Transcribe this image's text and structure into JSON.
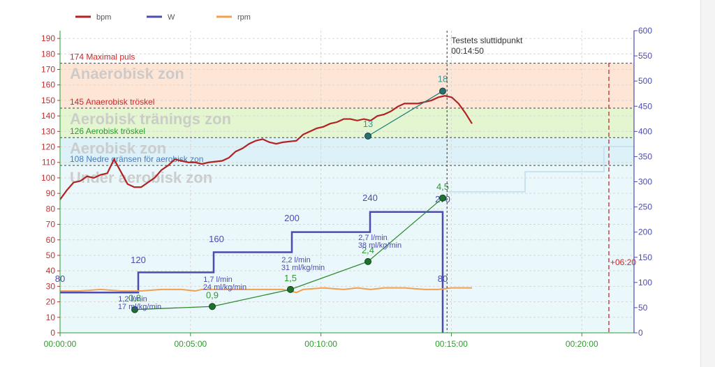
{
  "chart_data": {
    "type": "line",
    "legend": {
      "placement": "top-left",
      "items": [
        {
          "label": "bpm",
          "color": "#b22222"
        },
        {
          "label": "W",
          "color": "#4b4bb0"
        },
        {
          "label": "rpm",
          "color": "#f0a050"
        }
      ]
    },
    "x_axis": {
      "range": [
        "00:00:00",
        "00:22:00"
      ],
      "ticks": [
        "00:00:00",
        "00:05:00",
        "00:10:00",
        "00:15:00",
        "00:20:00"
      ],
      "color": "#2e9a2e",
      "grid": true
    },
    "y_axis_left": {
      "unit": "bpm",
      "range": [
        0,
        195
      ],
      "ticks": [
        0,
        10,
        20,
        30,
        40,
        50,
        60,
        70,
        80,
        90,
        100,
        110,
        120,
        130,
        140,
        150,
        160,
        170,
        180,
        190
      ],
      "color": "#c03030",
      "grid": true
    },
    "y_axis_right": {
      "unit": "W",
      "range": [
        0,
        600
      ],
      "ticks": [
        0,
        50,
        100,
        150,
        200,
        250,
        300,
        350,
        400,
        450,
        500,
        550,
        600
      ],
      "color": "#4b4bb0"
    },
    "zones": [
      {
        "name": "Anaerobisk zon",
        "from": 145,
        "to": 174,
        "color": "#fde6d6"
      },
      {
        "name": "Aerobisk tränings zon",
        "from": 126,
        "to": 145,
        "color": "#e4f6d0"
      },
      {
        "name": "Aerobisk zon",
        "from": 108,
        "to": 126,
        "color": "#dcf2f8"
      },
      {
        "name": "Under aerobisk zon",
        "from": 0,
        "to": 108,
        "color": "#eaf8fb"
      }
    ],
    "thresholds": [
      {
        "value": 174,
        "label": "174 Maximal puls",
        "color": "#c82828"
      },
      {
        "value": 145,
        "label": "145 Anaerobisk tröskel",
        "color": "#c82828"
      },
      {
        "value": 126,
        "label": "126 Aerobisk tröskel",
        "color": "#2e9a2e"
      },
      {
        "value": 108,
        "label": "108 Nedre gränsen för aerobisk zon",
        "color": "#4a7ab8"
      }
    ],
    "end_marker": {
      "time": "00:14:50",
      "label": "Testets sluttidpunkt",
      "time_label": "00:14:50"
    },
    "offset_marker": {
      "time": "00:21:10",
      "label": "+06:20"
    },
    "series": [
      {
        "name": "bpm",
        "axis": "left",
        "color": "#b22222",
        "points": [
          [
            0,
            86
          ],
          [
            10,
            92
          ],
          [
            20,
            97
          ],
          [
            30,
            98
          ],
          [
            40,
            101
          ],
          [
            50,
            100
          ],
          [
            60,
            102
          ],
          [
            70,
            103
          ],
          [
            80,
            112
          ],
          [
            90,
            104
          ],
          [
            100,
            96
          ],
          [
            110,
            94
          ],
          [
            120,
            94
          ],
          [
            130,
            97
          ],
          [
            140,
            100
          ],
          [
            150,
            105
          ],
          [
            160,
            108
          ],
          [
            170,
            112
          ],
          [
            180,
            111
          ],
          [
            190,
            110
          ],
          [
            200,
            110
          ],
          [
            210,
            109
          ],
          [
            220,
            110
          ],
          [
            240,
            111
          ],
          [
            250,
            113
          ],
          [
            260,
            117
          ],
          [
            270,
            119
          ],
          [
            280,
            122
          ],
          [
            290,
            124
          ],
          [
            300,
            125
          ],
          [
            310,
            123
          ],
          [
            320,
            122
          ],
          [
            330,
            123
          ],
          [
            350,
            124
          ],
          [
            360,
            128
          ],
          [
            370,
            130
          ],
          [
            380,
            132
          ],
          [
            390,
            133
          ],
          [
            400,
            135
          ],
          [
            410,
            136
          ],
          [
            420,
            138
          ],
          [
            430,
            138
          ],
          [
            440,
            137
          ],
          [
            450,
            138
          ],
          [
            460,
            137
          ],
          [
            470,
            140
          ],
          [
            480,
            141
          ],
          [
            490,
            143
          ],
          [
            500,
            146
          ],
          [
            510,
            148
          ],
          [
            520,
            148
          ],
          [
            530,
            148
          ],
          [
            540,
            149
          ],
          [
            550,
            150
          ],
          [
            560,
            152
          ],
          [
            570,
            153
          ],
          [
            580,
            152
          ],
          [
            590,
            148
          ],
          [
            600,
            142
          ],
          [
            610,
            135
          ]
        ]
      },
      {
        "name": "W",
        "axis": "right",
        "color": "#4b4bb0",
        "steps": [
          {
            "from": 0,
            "to": 198,
            "value": 80,
            "label": "80"
          },
          {
            "from": 198,
            "to": 406,
            "value": 120,
            "label": "120"
          },
          {
            "from": 406,
            "to": 602,
            "value": 160,
            "label": "160"
          },
          {
            "from": 602,
            "to": 790,
            "value": 200,
            "label": "200"
          },
          {
            "from": 790,
            "to": 988,
            "value": 240,
            "label": "240"
          },
          {
            "from": 988,
            "to": 1018,
            "value": 80,
            "label": "80"
          }
        ],
        "top_label": "270"
      },
      {
        "name": "rpm",
        "axis": "left",
        "color": "#f0a050",
        "points": [
          [
            0,
            27
          ],
          [
            30,
            27
          ],
          [
            60,
            28
          ],
          [
            90,
            27
          ],
          [
            120,
            27
          ],
          [
            150,
            28
          ],
          [
            180,
            28
          ],
          [
            200,
            27
          ],
          [
            210,
            28
          ],
          [
            240,
            28
          ],
          [
            270,
            28
          ],
          [
            300,
            28
          ],
          [
            330,
            28
          ],
          [
            350,
            26
          ],
          [
            360,
            28
          ],
          [
            390,
            29
          ],
          [
            420,
            28
          ],
          [
            440,
            29
          ],
          [
            460,
            28
          ],
          [
            480,
            29
          ],
          [
            510,
            29
          ],
          [
            540,
            28
          ],
          [
            560,
            28
          ],
          [
            580,
            29
          ],
          [
            600,
            29
          ],
          [
            610,
            29
          ]
        ]
      }
    ],
    "lactate": {
      "color": "#2e8a2e",
      "points": [
        {
          "t": 210,
          "value": "0,8",
          "y": 15
        },
        {
          "t": 400,
          "value": "0,9",
          "y": 17
        },
        {
          "t": 595,
          "value": "1,5",
          "y": 28
        },
        {
          "t": 792,
          "value": "2,4",
          "y": 46
        },
        {
          "t": 988,
          "value": "4,5",
          "y": 87
        }
      ]
    },
    "vo2": [
      {
        "line1": "1,2 l/min",
        "line2": "17 ml/kg/min"
      },
      {
        "line1": "1,7 l/min",
        "line2": "24 ml/kg/min"
      },
      {
        "line1": "2,2 l/min",
        "line2": "31 ml/kg/min"
      },
      {
        "line1": "2,7 l/min",
        "line2": "38 ml/kg/min"
      }
    ],
    "borg": {
      "color": "#1f7f7f",
      "points": [
        {
          "value": "13",
          "y": 127
        },
        {
          "value": "18",
          "y": 156
        }
      ]
    },
    "projection": {
      "color": "#c8e2f0",
      "values": [
        280,
        280,
        320,
        320,
        370
      ]
    }
  }
}
